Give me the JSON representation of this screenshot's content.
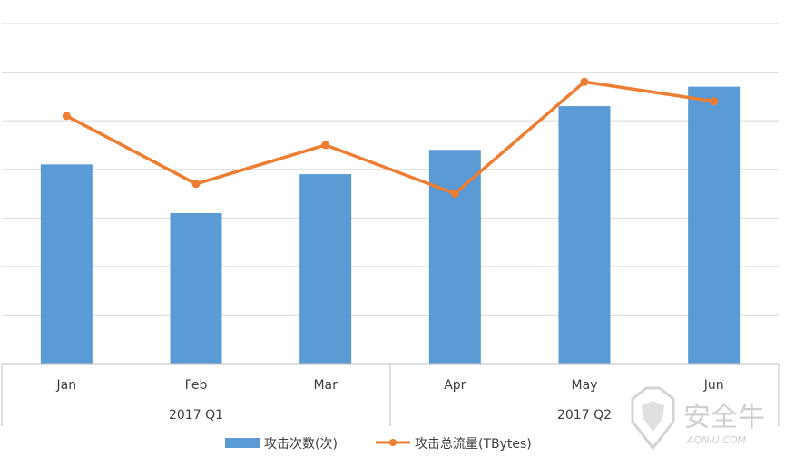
{
  "chart_data": {
    "type": "bar",
    "categories": [
      "Jan",
      "Feb",
      "Mar",
      "Apr",
      "May",
      "Jun"
    ],
    "groups": [
      {
        "label": "2017 Q1",
        "categories": [
          "Jan",
          "Feb",
          "Mar"
        ]
      },
      {
        "label": "2017 Q2",
        "categories": [
          "Apr",
          "May",
          "Jun"
        ]
      }
    ],
    "series": [
      {
        "name": "攻击次数(次)",
        "type": "bar",
        "color": "#5b9bd5",
        "values": [
          4.1,
          3.1,
          3.9,
          4.4,
          5.3,
          5.7
        ]
      },
      {
        "name": "攻击总流量(TBytes)",
        "type": "line",
        "color": "#ed7d31",
        "values": [
          5.1,
          3.7,
          4.5,
          3.5,
          5.8,
          5.4
        ]
      }
    ],
    "ylim": [
      0,
      7
    ],
    "grid": true,
    "legend": "bottom"
  },
  "watermark": {
    "title": "安全牛",
    "subtitle": "AQNIU.COM"
  }
}
